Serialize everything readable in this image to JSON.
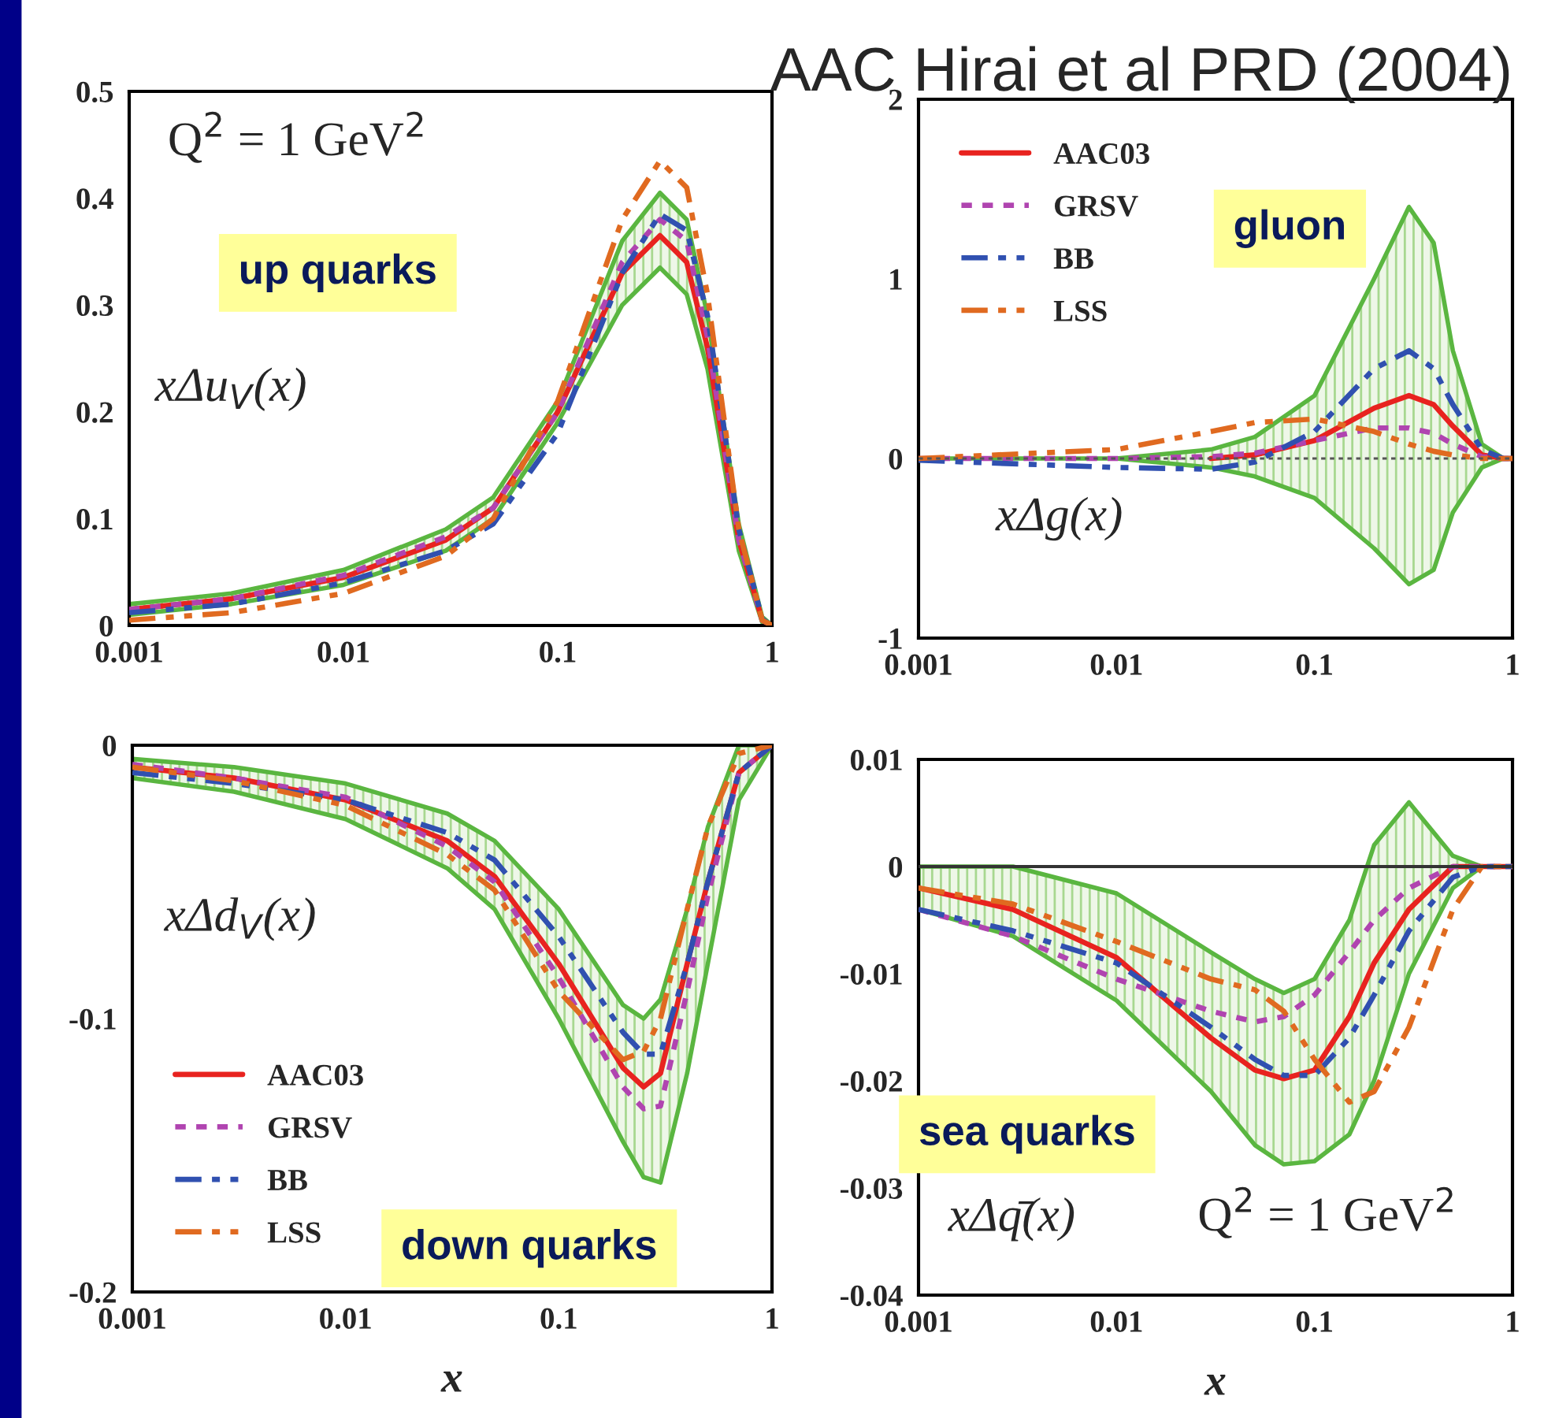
{
  "chart_data": [
    {
      "type": "line",
      "x": [
        0.001,
        0.003,
        0.01,
        0.03,
        0.05,
        0.1,
        0.2,
        0.3,
        0.4,
        0.5,
        0.7,
        0.9,
        1
      ],
      "log": "x",
      "xlim": [
        0.001,
        1
      ],
      "xticks": [
        0.001,
        0.01,
        0.1,
        1
      ],
      "ylim": [
        0,
        0.5
      ],
      "yticks": [
        0,
        0.1,
        0.2,
        0.3,
        0.4,
        0.5
      ],
      "grid": false,
      "legend": false,
      "annotations": [
        "Q$^{2}$ = 1 GeV$^{2}$",
        "up quarks",
        "xΔu$_{V}$(x)"
      ],
      "series": [
        {
          "color": "#e8231f",
          "line_style": "solid",
          "values": [
            0.015,
            0.025,
            0.045,
            0.08,
            0.11,
            0.2,
            0.33,
            0.365,
            0.34,
            0.26,
            0.08,
            0.005,
            0
          ],
          "lower": [
            0.01,
            0.02,
            0.038,
            0.07,
            0.1,
            0.19,
            0.3,
            0.335,
            0.31,
            0.24,
            0.07,
            0.003,
            0
          ],
          "upper": [
            0.02,
            0.03,
            0.052,
            0.09,
            0.12,
            0.21,
            0.36,
            0.405,
            0.38,
            0.29,
            0.095,
            0.008,
            0
          ]
        },
        {
          "color": "#b044b0",
          "line_style": "dotted",
          "values": [
            0.015,
            0.025,
            0.047,
            0.083,
            0.11,
            0.2,
            0.34,
            0.38,
            0.36,
            0.27,
            0.08,
            0.005,
            0
          ]
        },
        {
          "color": "#3050b0",
          "line_style": "dashed",
          "values": [
            0.012,
            0.02,
            0.04,
            0.07,
            0.095,
            0.18,
            0.33,
            0.385,
            0.37,
            0.29,
            0.09,
            0.006,
            0
          ]
        },
        {
          "color": "#e06a20",
          "line_style": "dashed",
          "values": [
            0.005,
            0.012,
            0.03,
            0.065,
            0.1,
            0.21,
            0.38,
            0.435,
            0.41,
            0.31,
            0.09,
            0.005,
            0
          ]
        }
      ]
    },
    {
      "type": "line",
      "title": "AAC Hirai et al PRD (2004)",
      "x": [
        0.001,
        0.01,
        0.03,
        0.05,
        0.1,
        0.2,
        0.3,
        0.4,
        0.5,
        0.7,
        0.9,
        1
      ],
      "log": "x",
      "xlim": [
        0.001,
        1
      ],
      "xticks": [
        0.001,
        0.01,
        0.1,
        1
      ],
      "ylim": [
        -1,
        2
      ],
      "yticks": [
        -1,
        0,
        1,
        2
      ],
      "grid": false,
      "legend": "top left",
      "annotations": [
        "gluon",
        "xΔg(x)"
      ],
      "ref_lines": [
        {
          "axis": "y",
          "value": 0,
          "color": "#555555",
          "line_style": "dotted"
        }
      ],
      "series": [
        {
          "name": "AAC03",
          "color": "#e8231f",
          "line_style": "solid",
          "values": [
            null,
            null,
            0,
            0.02,
            0.1,
            0.28,
            0.35,
            0.3,
            0.18,
            0.02,
            0,
            0
          ],
          "lower": [
            0,
            0,
            -0.05,
            -0.1,
            -0.22,
            -0.5,
            -0.7,
            -0.62,
            -0.3,
            -0.05,
            0,
            0
          ],
          "upper": [
            0,
            0,
            0.05,
            0.12,
            0.35,
            1.0,
            1.4,
            1.2,
            0.6,
            0.08,
            0,
            0
          ]
        },
        {
          "name": "GRSV",
          "color": "#b044b0",
          "line_style": "dotted",
          "values": [
            0,
            0,
            0.01,
            0.03,
            0.1,
            0.17,
            0.17,
            0.14,
            0.08,
            0.01,
            0,
            0
          ]
        },
        {
          "name": "BB",
          "color": "#3050b0",
          "line_style": "dashed",
          "values": [
            -0.01,
            -0.05,
            -0.06,
            -0.02,
            0.15,
            0.5,
            0.6,
            0.5,
            0.3,
            0.05,
            0,
            0
          ]
        },
        {
          "name": "LSS",
          "color": "#e06a20",
          "line_style": "dashed",
          "values": [
            0,
            0.05,
            0.15,
            0.2,
            0.22,
            0.15,
            0.08,
            0.04,
            0.02,
            0,
            0,
            0
          ]
        }
      ]
    },
    {
      "type": "line",
      "xlabel": "x",
      "x": [
        0.001,
        0.003,
        0.01,
        0.03,
        0.05,
        0.1,
        0.2,
        0.25,
        0.3,
        0.4,
        0.5,
        0.7,
        1
      ],
      "log": "x",
      "xlim": [
        0.001,
        1
      ],
      "xticks": [
        0.001,
        0.01,
        0.1,
        1
      ],
      "ylim": [
        -0.2,
        0
      ],
      "yticks": [
        -0.2,
        -0.1,
        0
      ],
      "grid": false,
      "legend": "bottom left",
      "annotations": [
        "xΔd$_{V}$(x)",
        "down quarks"
      ],
      "series": [
        {
          "name": "AAC03",
          "color": "#e8231f",
          "line_style": "solid",
          "values": [
            -0.008,
            -0.012,
            -0.02,
            -0.035,
            -0.048,
            -0.08,
            -0.118,
            -0.125,
            -0.12,
            -0.08,
            -0.05,
            -0.01,
            0
          ],
          "lower": [
            -0.012,
            -0.017,
            -0.027,
            -0.045,
            -0.06,
            -0.1,
            -0.145,
            -0.158,
            -0.16,
            -0.12,
            -0.08,
            -0.02,
            0
          ],
          "upper": [
            -0.005,
            -0.008,
            -0.014,
            -0.025,
            -0.035,
            -0.06,
            -0.095,
            -0.1,
            -0.093,
            -0.06,
            -0.03,
            0,
            0
          ]
        },
        {
          "name": "GRSV",
          "color": "#b044b0",
          "line_style": "dotted",
          "values": [
            -0.007,
            -0.012,
            -0.019,
            -0.037,
            -0.05,
            -0.085,
            -0.125,
            -0.133,
            -0.132,
            -0.09,
            -0.055,
            -0.01,
            0
          ]
        },
        {
          "name": "BB",
          "color": "#3050b0",
          "line_style": "dashed",
          "values": [
            -0.01,
            -0.014,
            -0.02,
            -0.032,
            -0.042,
            -0.07,
            -0.105,
            -0.113,
            -0.113,
            -0.08,
            -0.05,
            -0.01,
            0
          ]
        },
        {
          "name": "LSS",
          "color": "#e06a20",
          "line_style": "dashed",
          "values": [
            -0.008,
            -0.013,
            -0.022,
            -0.04,
            -0.053,
            -0.09,
            -0.115,
            -0.112,
            -0.1,
            -0.06,
            -0.03,
            -0.003,
            0
          ]
        }
      ]
    },
    {
      "type": "line",
      "xlabel": "x",
      "x": [
        0.001,
        0.003,
        0.01,
        0.03,
        0.05,
        0.07,
        0.1,
        0.15,
        0.2,
        0.3,
        0.5,
        0.7,
        1
      ],
      "log": "x",
      "xlim": [
        0.001,
        1
      ],
      "xticks": [
        0.001,
        0.01,
        0.1,
        1
      ],
      "ylim": [
        -0.04,
        0.01
      ],
      "yticks": [
        -0.04,
        -0.03,
        -0.02,
        -0.01,
        0,
        0.01
      ],
      "grid": false,
      "legend": false,
      "annotations": [
        "sea quarks",
        "xΔq̄(x)",
        "Q$^{2}$ = 1 GeV$^{2}$"
      ],
      "ref_lines": [
        {
          "axis": "y",
          "value": 0,
          "color": "#333333",
          "line_style": "solid"
        }
      ],
      "series": [
        {
          "color": "#e8231f",
          "line_style": "solid",
          "values": [
            -0.002,
            -0.004,
            -0.0085,
            -0.016,
            -0.019,
            -0.0198,
            -0.019,
            -0.014,
            -0.009,
            -0.004,
            0,
            0,
            0
          ],
          "lower": [
            -0.004,
            -0.0065,
            -0.0125,
            -0.021,
            -0.026,
            -0.0278,
            -0.0275,
            -0.025,
            -0.02,
            -0.01,
            -0.002,
            0,
            0
          ],
          "upper": [
            0,
            0,
            -0.0025,
            -0.008,
            -0.0105,
            -0.0118,
            -0.0105,
            -0.005,
            0.002,
            0.006,
            0.001,
            0,
            0
          ]
        },
        {
          "color": "#b044b0",
          "line_style": "dotted",
          "values": [
            -0.004,
            -0.0065,
            -0.0105,
            -0.0135,
            -0.0145,
            -0.014,
            -0.012,
            -0.008,
            -0.005,
            -0.002,
            0,
            0,
            0
          ]
        },
        {
          "color": "#3050b0",
          "line_style": "dashed",
          "values": [
            -0.004,
            -0.006,
            -0.009,
            -0.015,
            -0.018,
            -0.0195,
            -0.0195,
            -0.016,
            -0.012,
            -0.006,
            -0.001,
            0,
            0
          ]
        },
        {
          "color": "#e06a20",
          "line_style": "dashed",
          "values": [
            -0.002,
            -0.0035,
            -0.007,
            -0.0105,
            -0.0115,
            -0.0135,
            -0.018,
            -0.022,
            -0.021,
            -0.015,
            -0.004,
            0,
            0
          ]
        }
      ]
    }
  ]
}
